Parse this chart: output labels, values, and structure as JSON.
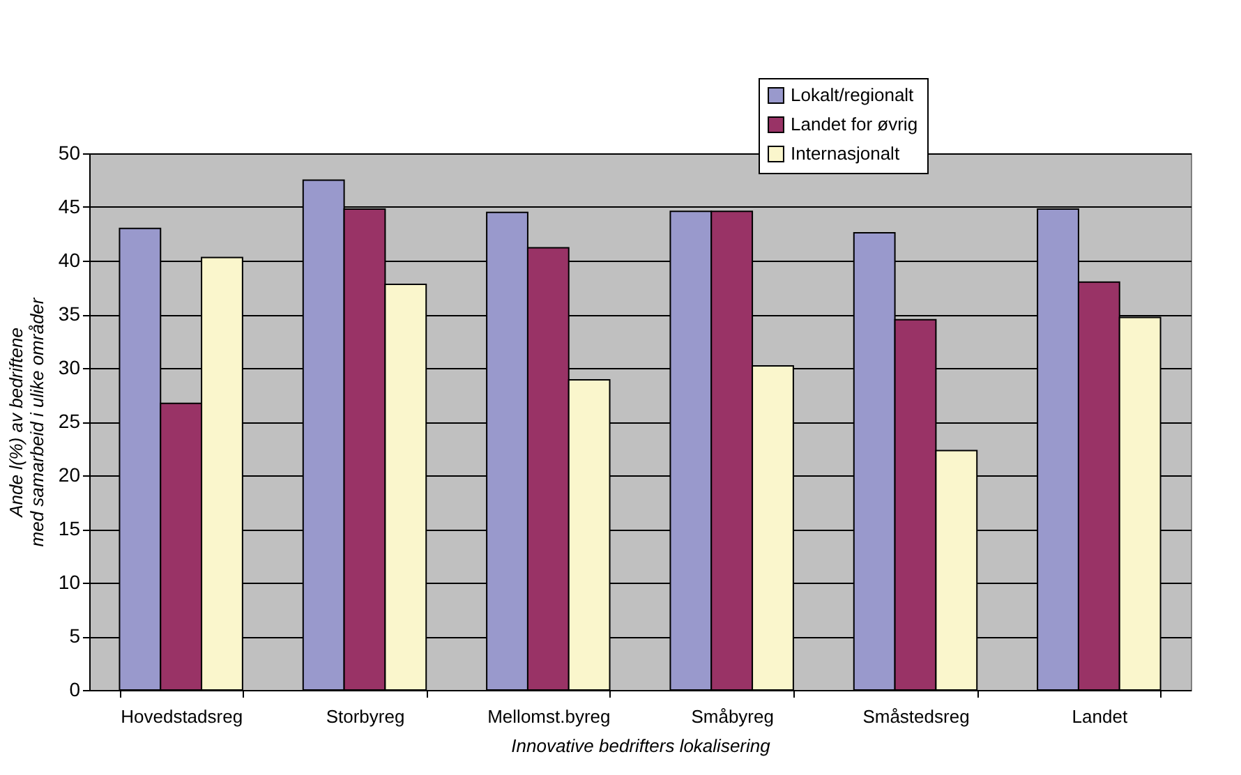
{
  "chart_data": {
    "type": "bar",
    "categories": [
      "Hovedstadsreg",
      "Storbyreg",
      "Mellomst.byreg",
      "Småbyreg",
      "Småstedsreg",
      "Landet"
    ],
    "xlabel": "Innovative bedrifters lokalisering",
    "ylabel": "Ande l(%) av bedriftene\nmed samarbeid i ulike områder",
    "series": [
      {
        "name": "Lokalt/regionalt",
        "color": "#9999cc",
        "values": [
          43.0,
          47.5,
          44.5,
          44.6,
          42.6,
          44.8
        ]
      },
      {
        "name": "Landet for øvrig",
        "color": "#993366",
        "values": [
          26.7,
          44.8,
          41.2,
          44.6,
          34.5,
          38.0
        ]
      },
      {
        "name": "Internasjonalt",
        "color": "#faf6cc",
        "values": [
          40.3,
          37.8,
          28.9,
          30.2,
          22.3,
          34.7
        ]
      }
    ],
    "ylim": [
      0,
      50
    ],
    "yticks": [
      0,
      5,
      10,
      15,
      20,
      25,
      30,
      35,
      40,
      45,
      50
    ],
    "grid": "y",
    "legend": "top"
  }
}
